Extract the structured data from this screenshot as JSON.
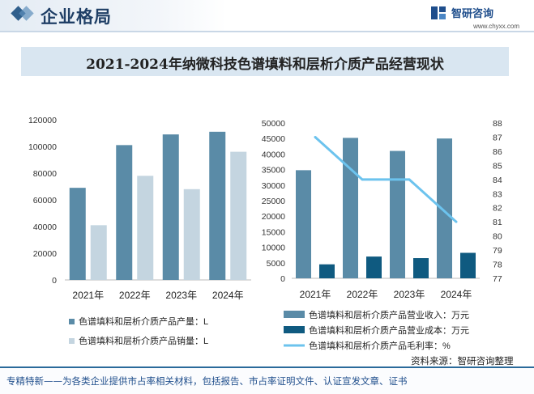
{
  "header": {
    "title": "企业格局"
  },
  "brand": {
    "name": "智研咨询",
    "url": "www.chyxx.com",
    "logo_icon": "zhiyan-logo-icon"
  },
  "title": "2021-2024年纳微科技色谱填料和层析介质产品经营现状",
  "source": "资料来源：智研咨询整理",
  "footer": "专精特新——为各类企业提供市占率相关材料，包括报告、市占率证明文件、认证宣发文章、证书",
  "colors": {
    "dark_blue_bar": "#5a8ba7",
    "light_blue_bar": "#c4d5e0",
    "navy_bar": "#0f5a80",
    "line": "#6cc3ee",
    "title_bar_bg": "#d9e6f1"
  },
  "chart_data": [
    {
      "type": "bar",
      "categories": [
        "2021年",
        "2022年",
        "2023年",
        "2024年"
      ],
      "ylim": [
        0,
        120000
      ],
      "yticks": [
        0,
        20000,
        40000,
        60000,
        80000,
        100000,
        120000
      ],
      "series": [
        {
          "name": "色谱填料和层析介质产品产量：L",
          "values": [
            69000,
            101000,
            109000,
            111000
          ]
        },
        {
          "name": "色谱填料和层析介质产品销量：L",
          "values": [
            41000,
            78000,
            68000,
            96000
          ]
        }
      ],
      "legend": "bottom"
    },
    {
      "type": "bar",
      "categories": [
        "2021年",
        "2022年",
        "2023年",
        "2024年"
      ],
      "ylim": [
        0,
        50000
      ],
      "yticks": [
        0,
        5000,
        10000,
        15000,
        20000,
        25000,
        30000,
        35000,
        40000,
        45000,
        50000
      ],
      "y2lim": [
        77,
        88
      ],
      "y2ticks": [
        77,
        78,
        79,
        80,
        81,
        82,
        83,
        84,
        85,
        86,
        87,
        88
      ],
      "series": [
        {
          "name": "色谱填料和层析介质产品营业收入：万元",
          "type": "bar",
          "axis": "left",
          "values": [
            34800,
            45200,
            41000,
            45000
          ]
        },
        {
          "name": "色谱填料和层析介质产品营业成本：万元",
          "type": "bar",
          "axis": "left",
          "values": [
            4500,
            7000,
            6500,
            8200
          ]
        },
        {
          "name": "色谱填料和层析介质产品毛利率：%",
          "type": "line",
          "axis": "right",
          "values": [
            87,
            84,
            84,
            81
          ]
        }
      ],
      "legend": "bottom"
    }
  ]
}
